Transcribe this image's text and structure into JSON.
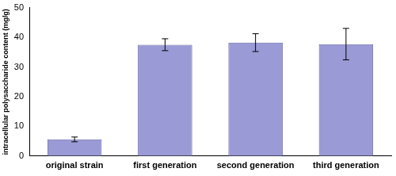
{
  "chart_data": {
    "type": "bar",
    "y_label": "intracellular polysaccharide content (mg/g)",
    "categories": [
      "original strain",
      "first generation",
      "second generation",
      "third generation"
    ],
    "values": [
      5.6,
      37.5,
      38.2,
      37.7
    ],
    "errors": [
      0.8,
      2.0,
      3.0,
      5.3
    ],
    "color": "#9a9ad6",
    "ylim": [
      0,
      50
    ],
    "yticks": [
      0,
      10,
      20,
      30,
      40,
      50
    ],
    "grid": false
  }
}
